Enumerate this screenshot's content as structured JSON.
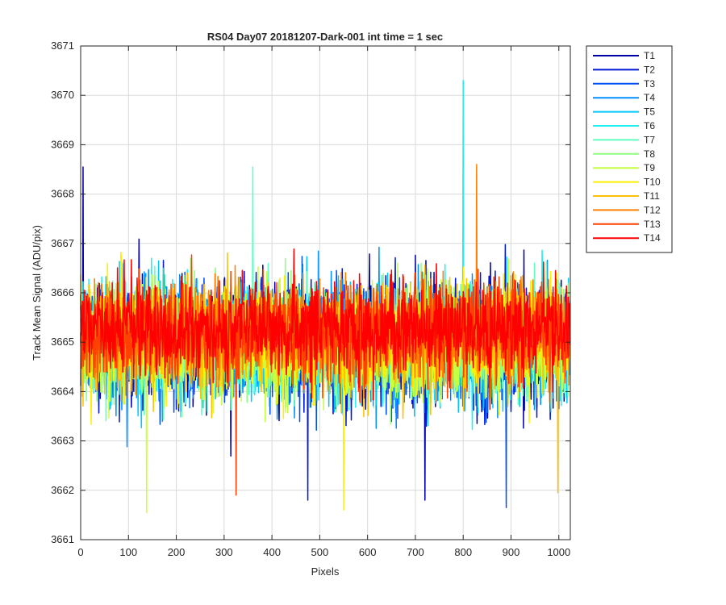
{
  "chart_data": {
    "type": "line",
    "title": "RS04 Day07 20181207-Dark-001 int time = 1 sec",
    "xlabel": "Pixels",
    "ylabel": "Track Mean Signal (ADU/pix)",
    "xlim": [
      0,
      1024
    ],
    "ylim": [
      3661,
      3671
    ],
    "xticks": [
      0,
      100,
      200,
      300,
      400,
      500,
      600,
      700,
      800,
      900,
      1000
    ],
    "yticks": [
      3661,
      3662,
      3663,
      3664,
      3665,
      3666,
      3667,
      3668,
      3669,
      3670,
      3671
    ],
    "grid": true,
    "legend_position": "outside-top-right",
    "n_pixels": 1024,
    "series": [
      {
        "name": "T1",
        "color": "#0000AA",
        "mean": 3665.0,
        "spread": 0.95
      },
      {
        "name": "T2",
        "color": "#0018D8",
        "mean": 3665.0,
        "spread": 0.95
      },
      {
        "name": "T3",
        "color": "#0050F0",
        "mean": 3665.0,
        "spread": 0.95
      },
      {
        "name": "T4",
        "color": "#0090FF",
        "mean": 3665.0,
        "spread": 0.95
      },
      {
        "name": "T5",
        "color": "#00C8FF",
        "mean": 3665.0,
        "spread": 0.9
      },
      {
        "name": "T6",
        "color": "#20F0F0",
        "mean": 3665.0,
        "spread": 0.9
      },
      {
        "name": "T7",
        "color": "#60FFC0",
        "mean": 3665.0,
        "spread": 0.9
      },
      {
        "name": "T8",
        "color": "#90FF80",
        "mean": 3665.0,
        "spread": 0.9
      },
      {
        "name": "T9",
        "color": "#C8FF40",
        "mean": 3665.0,
        "spread": 0.9
      },
      {
        "name": "T10",
        "color": "#FFF000",
        "mean": 3665.1,
        "spread": 0.85
      },
      {
        "name": "T11",
        "color": "#FFC000",
        "mean": 3665.1,
        "spread": 0.85
      },
      {
        "name": "T12",
        "color": "#FF8000",
        "mean": 3665.2,
        "spread": 0.8
      },
      {
        "name": "T13",
        "color": "#FF4000",
        "mean": 3665.2,
        "spread": 0.8
      },
      {
        "name": "T14",
        "color": "#FF0000",
        "mean": 3665.3,
        "spread": 0.75
      }
    ],
    "annotations": [
      {
        "series": "T6",
        "x": 800,
        "y": 3670.3
      },
      {
        "series": "T12",
        "x": 828,
        "y": 3668.6
      },
      {
        "series": "T7",
        "x": 360,
        "y": 3668.55
      },
      {
        "series": "T1",
        "x": 5,
        "y": 3668.55
      },
      {
        "series": "T9",
        "x": 138,
        "y": 3661.55
      },
      {
        "series": "T10",
        "x": 550,
        "y": 3661.6
      },
      {
        "series": "T11",
        "x": 998,
        "y": 3661.95
      },
      {
        "series": "T13",
        "x": 325,
        "y": 3661.9
      },
      {
        "series": "T2",
        "x": 475,
        "y": 3661.8
      },
      {
        "series": "T1",
        "x": 720,
        "y": 3661.8
      },
      {
        "series": "T3",
        "x": 890,
        "y": 3661.65
      }
    ]
  }
}
